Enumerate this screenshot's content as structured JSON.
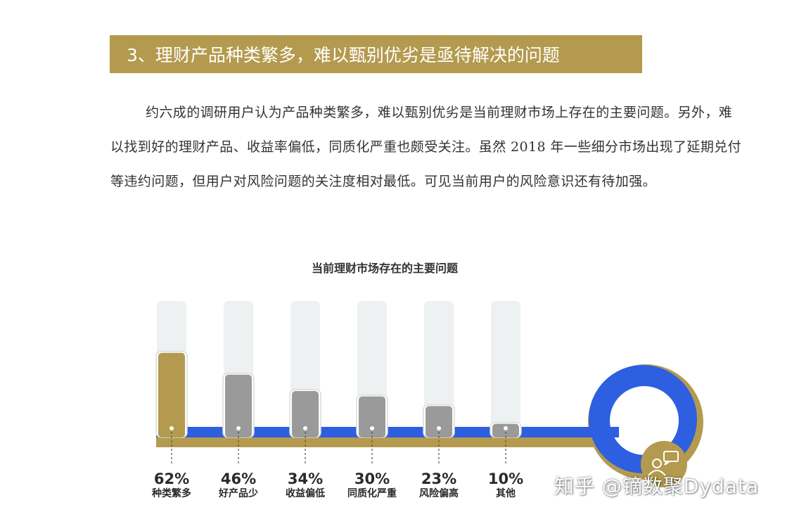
{
  "section": {
    "heading": "3、理财产品种类繁多，难以甄别优劣是亟待解决的问题",
    "paragraph": "约六成的调研用户认为产品种类繁多，难以甄别优劣是当前理财市场上存在的主要问题。另外，难以找到好的理财产品、收益率偏低，同质化严重也颇受关注。虽然 2018 年一些细分市场出现了延期兑付等违约问题，但用户对风险问题的关注度相对最低。可见当前用户的风险意识还有待加强。"
  },
  "chart_data": {
    "type": "bar",
    "title": "当前理财市场存在的主要问题",
    "categories": [
      "种类繁多",
      "好产品少",
      "收益偏低",
      "同质化严重",
      "风险偏高",
      "其他"
    ],
    "values": [
      62,
      46,
      34,
      30,
      23,
      10
    ],
    "value_labels": [
      "62%",
      "46%",
      "34%",
      "30%",
      "23%",
      "10%"
    ],
    "ylim": [
      0,
      100
    ],
    "colors": {
      "highlight": "#b49a4e",
      "bar": "#9a9a9a",
      "track": "#eef1f1",
      "base_line": "#2d5fe0",
      "gold": "#b49a4e"
    }
  },
  "watermark": "知乎 @镝数聚Dydata"
}
